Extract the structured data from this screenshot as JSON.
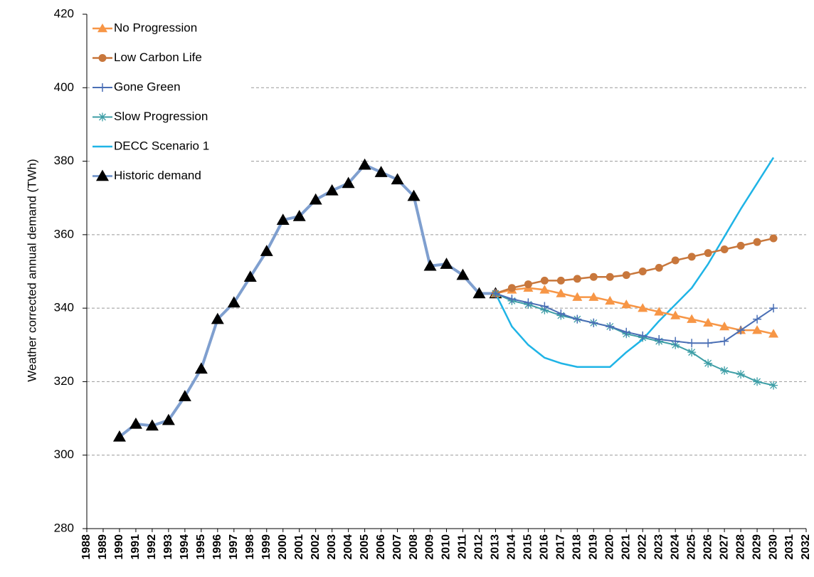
{
  "chart_data": {
    "type": "line",
    "y_label": "Weather corrected annual demand (TWh)",
    "xlim": [
      1988,
      2032
    ],
    "xticks": [
      1988,
      1989,
      1990,
      1991,
      1992,
      1993,
      1994,
      1995,
      1996,
      1997,
      1998,
      1999,
      2000,
      2001,
      2002,
      2003,
      2004,
      2005,
      2006,
      2007,
      2008,
      2009,
      2010,
      2011,
      2012,
      2013,
      2014,
      2015,
      2016,
      2017,
      2018,
      2019,
      2020,
      2021,
      2022,
      2023,
      2024,
      2025,
      2026,
      2027,
      2028,
      2029,
      2030,
      2031,
      2032
    ],
    "ylim": [
      280,
      420
    ],
    "yticks": [
      280,
      300,
      320,
      340,
      360,
      380,
      400,
      420
    ],
    "grid": true,
    "legend": "upper left",
    "series": [
      {
        "name": "No Progression",
        "color": "#f79646",
        "marker": "triangle",
        "width": 2.5,
        "x": [
          2013,
          2014,
          2015,
          2016,
          2017,
          2018,
          2019,
          2020,
          2021,
          2022,
          2023,
          2024,
          2025,
          2026,
          2027,
          2028,
          2029,
          2030
        ],
        "values": [
          344,
          345,
          345.5,
          345,
          344,
          343,
          343,
          342,
          341,
          340,
          339,
          338,
          337,
          336,
          335,
          334,
          334,
          333
        ]
      },
      {
        "name": "Low Carbon Life",
        "color": "#c8773c",
        "marker": "circle",
        "width": 2.5,
        "x": [
          2013,
          2014,
          2015,
          2016,
          2017,
          2018,
          2019,
          2020,
          2021,
          2022,
          2023,
          2024,
          2025,
          2026,
          2027,
          2028,
          2029,
          2030
        ],
        "values": [
          344,
          345.5,
          346.5,
          347.5,
          347.5,
          348,
          348.5,
          348.5,
          349,
          350,
          351,
          353,
          354,
          355,
          356,
          357,
          358,
          359
        ]
      },
      {
        "name": "Gone Green",
        "color": "#4a6fb5",
        "marker": "plus",
        "width": 2,
        "x": [
          2013,
          2014,
          2015,
          2016,
          2017,
          2018,
          2019,
          2020,
          2021,
          2022,
          2023,
          2024,
          2025,
          2026,
          2027,
          2028,
          2029,
          2030
        ],
        "values": [
          344,
          342.5,
          341.5,
          340.5,
          338.5,
          337,
          336,
          335,
          333.5,
          332.5,
          331.5,
          331,
          330.5,
          330.5,
          331,
          334,
          337,
          340
        ]
      },
      {
        "name": "Slow Progression",
        "color": "#3d9ea6",
        "marker": "asterisk",
        "width": 2,
        "x": [
          2013,
          2014,
          2015,
          2016,
          2017,
          2018,
          2019,
          2020,
          2021,
          2022,
          2023,
          2024,
          2025,
          2026,
          2027,
          2028,
          2029,
          2030
        ],
        "values": [
          344,
          342,
          341,
          339.5,
          338,
          337,
          336,
          335,
          333,
          332,
          331,
          330,
          328,
          325,
          323,
          322,
          320,
          319
        ]
      },
      {
        "name": "DECC Scenario 1",
        "color": "#1fb4e6",
        "marker": "none",
        "width": 2.5,
        "x": [
          2013,
          2014,
          2015,
          2016,
          2017,
          2018,
          2019,
          2020,
          2021,
          2022,
          2023,
          2024,
          2025,
          2026,
          2027,
          2028,
          2029,
          2030
        ],
        "values": [
          344,
          335,
          330,
          326.5,
          325,
          324,
          324,
          324,
          328,
          331.5,
          336.5,
          341,
          345.5,
          352,
          359.5,
          367,
          374,
          381
        ]
      },
      {
        "name": "Historic demand",
        "color": "#7f9fcf",
        "marker": "triangle",
        "marker_color": "#000000",
        "width": 4,
        "x": [
          1990,
          1991,
          1992,
          1993,
          1994,
          1995,
          1996,
          1997,
          1998,
          1999,
          2000,
          2001,
          2002,
          2003,
          2004,
          2005,
          2006,
          2007,
          2008,
          2009,
          2010,
          2011,
          2012,
          2013
        ],
        "values": [
          305,
          308.5,
          308,
          309.5,
          316,
          323.5,
          337,
          341.5,
          348.5,
          355.5,
          364,
          365,
          369.5,
          372,
          374,
          379,
          377,
          375,
          370.5,
          351.5,
          352,
          349,
          344,
          344
        ]
      }
    ]
  }
}
